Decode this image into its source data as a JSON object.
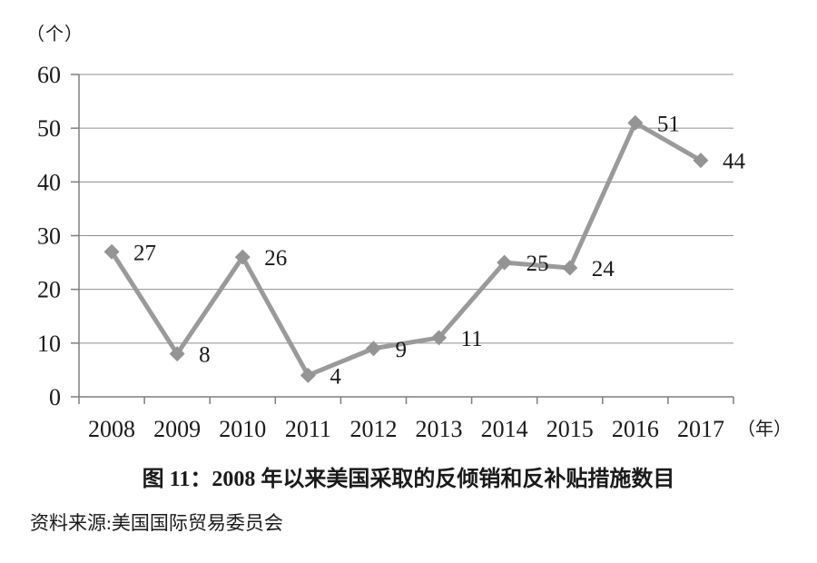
{
  "chart_data": {
    "type": "line",
    "title": "图 11：2008 年以来美国采取的反倾销和反补贴措施数目",
    "source": "资料来源:美国国际贸易委员会",
    "y_unit_label": "（个）",
    "x_unit_label": "（年）",
    "categories": [
      "2008",
      "2009",
      "2010",
      "2011",
      "2012",
      "2013",
      "2014",
      "2015",
      "2016",
      "2017"
    ],
    "values": [
      27,
      8,
      26,
      4,
      9,
      11,
      25,
      24,
      51,
      44
    ],
    "ylim": [
      0,
      60
    ],
    "yticks": [
      0,
      10,
      20,
      30,
      40,
      50,
      60
    ],
    "grid": "horizontal",
    "legend": "none",
    "marker": "diamond",
    "colors": {
      "line": "#9a9a9a",
      "marker": "#949494",
      "grid": "#8f8f8f",
      "axis": "#7f7f7f",
      "text": "#1a1a1a"
    }
  }
}
